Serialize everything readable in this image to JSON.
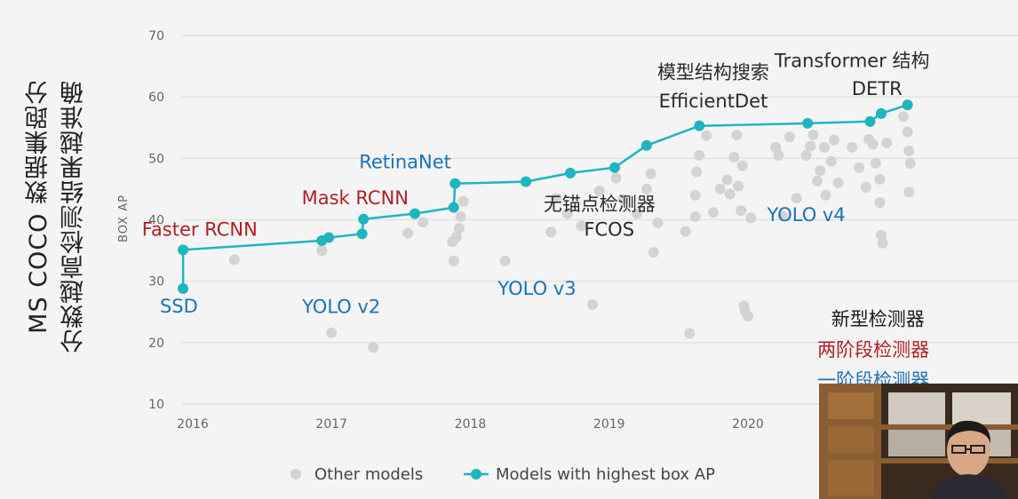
{
  "side_title": {
    "line1": "MS COCO 数据集跑分",
    "line2": "分数越高检测结果越准确"
  },
  "chart_data": {
    "type": "scatter",
    "xlabel": "",
    "ylabel": "BOX AP",
    "xlim": [
      2015.9,
      2021.2
    ],
    "ylim": [
      10,
      70
    ],
    "x_ticks": [
      "2016",
      "2017",
      "2018",
      "2019",
      "2020"
    ],
    "y_ticks": [
      "10",
      "20",
      "30",
      "40",
      "50",
      "60",
      "70"
    ],
    "grid": true,
    "legend_position": "bottom",
    "legend": [
      {
        "label": "Other models",
        "color": "#d3d3d3",
        "marker": "dot"
      },
      {
        "label": "Models with highest box AP",
        "color": "#1fb5bf",
        "marker": "line-dot"
      }
    ],
    "series": [
      {
        "name": "Models with highest box AP",
        "color": "#1fb5bf",
        "points": [
          [
            2015.93,
            28.8
          ],
          [
            2015.93,
            35.1
          ],
          [
            2016.93,
            36.6
          ],
          [
            2016.98,
            37.1
          ],
          [
            2017.22,
            37.7
          ],
          [
            2017.23,
            40.1
          ],
          [
            2017.6,
            41.0
          ],
          [
            2017.88,
            42.0
          ],
          [
            2017.89,
            45.9
          ],
          [
            2018.4,
            46.2
          ],
          [
            2018.72,
            47.6
          ],
          [
            2019.04,
            48.5
          ],
          [
            2019.27,
            52.1
          ],
          [
            2019.65,
            55.3
          ],
          [
            2020.43,
            55.7
          ],
          [
            2020.88,
            56.0
          ],
          [
            2020.96,
            57.3
          ],
          [
            2021.15,
            58.7
          ]
        ]
      },
      {
        "name": "Other models",
        "color": "#d3d3d3",
        "points": [
          [
            2016.3,
            33.5
          ],
          [
            2016.93,
            35.0
          ],
          [
            2017.0,
            21.6
          ],
          [
            2017.3,
            19.2
          ],
          [
            2017.55,
            37.8
          ],
          [
            2017.66,
            39.6
          ],
          [
            2017.88,
            33.3
          ],
          [
            2017.87,
            36.4
          ],
          [
            2017.9,
            37.2
          ],
          [
            2017.92,
            38.6
          ],
          [
            2017.93,
            40.5
          ],
          [
            2017.95,
            43.0
          ],
          [
            2018.25,
            33.3
          ],
          [
            2018.58,
            38.0
          ],
          [
            2018.62,
            43.5
          ],
          [
            2018.7,
            41.0
          ],
          [
            2018.8,
            39.0
          ],
          [
            2018.88,
            26.2
          ],
          [
            2018.93,
            44.7
          ],
          [
            2019.05,
            46.8
          ],
          [
            2019.1,
            43.3
          ],
          [
            2019.2,
            41.0
          ],
          [
            2019.27,
            45.0
          ],
          [
            2019.3,
            47.5
          ],
          [
            2019.32,
            34.7
          ],
          [
            2019.35,
            39.5
          ],
          [
            2019.55,
            38.1
          ],
          [
            2019.58,
            21.5
          ],
          [
            2019.62,
            40.5
          ],
          [
            2019.62,
            44.0
          ],
          [
            2019.63,
            47.8
          ],
          [
            2019.65,
            50.5
          ],
          [
            2019.7,
            53.7
          ],
          [
            2019.75,
            41.2
          ],
          [
            2019.8,
            45.0
          ],
          [
            2019.85,
            46.5
          ],
          [
            2019.87,
            44.2
          ],
          [
            2019.9,
            50.2
          ],
          [
            2019.92,
            53.8
          ],
          [
            2019.93,
            45.5
          ],
          [
            2019.95,
            41.5
          ],
          [
            2019.96,
            48.8
          ],
          [
            2019.97,
            26.0
          ],
          [
            2019.98,
            25.1
          ],
          [
            2020.0,
            24.3
          ],
          [
            2020.02,
            40.3
          ],
          [
            2020.2,
            51.8
          ],
          [
            2020.22,
            50.5
          ],
          [
            2020.25,
            40.6
          ],
          [
            2020.3,
            53.5
          ],
          [
            2020.35,
            43.5
          ],
          [
            2020.42,
            50.5
          ],
          [
            2020.45,
            52.0
          ],
          [
            2020.47,
            53.8
          ],
          [
            2020.5,
            46.3
          ],
          [
            2020.52,
            48.0
          ],
          [
            2020.55,
            51.8
          ],
          [
            2020.56,
            44.0
          ],
          [
            2020.6,
            49.5
          ],
          [
            2020.62,
            53.0
          ],
          [
            2020.65,
            46.0
          ],
          [
            2020.75,
            51.8
          ],
          [
            2020.8,
            48.5
          ],
          [
            2020.85,
            45.3
          ],
          [
            2020.87,
            53.1
          ],
          [
            2020.9,
            52.3
          ],
          [
            2020.92,
            49.2
          ],
          [
            2020.95,
            46.6
          ],
          [
            2020.95,
            42.8
          ],
          [
            2020.96,
            37.5
          ],
          [
            2020.97,
            36.2
          ],
          [
            2021.0,
            52.5
          ],
          [
            2021.12,
            56.8
          ],
          [
            2021.15,
            54.3
          ],
          [
            2021.16,
            51.2
          ],
          [
            2021.17,
            49.2
          ],
          [
            2021.16,
            44.5
          ]
        ]
      }
    ],
    "annotations": [
      {
        "text": "SSD",
        "color": "#1a72b8",
        "x": 2015.9,
        "y": 24.9,
        "anchor": "middle",
        "size": 21
      },
      {
        "text": "Faster RCNN",
        "color": "#b02024",
        "x": 2016.05,
        "y": 37.4,
        "anchor": "middle",
        "size": 21
      },
      {
        "text": "Mask RCNN",
        "color": "#b02024",
        "x": 2017.17,
        "y": 42.5,
        "anchor": "middle",
        "size": 21
      },
      {
        "text": "RetinaNet",
        "color": "#1a72b8",
        "x": 2017.53,
        "y": 48.4,
        "anchor": "middle",
        "size": 21
      },
      {
        "text": "YOLO v2",
        "color": "#1a72b8",
        "x": 2017.07,
        "y": 24.8,
        "anchor": "middle",
        "size": 21
      },
      {
        "text": "YOLO v3",
        "color": "#1a72b8",
        "x": 2018.48,
        "y": 27.8,
        "anchor": "middle",
        "size": 21
      },
      {
        "text": "YOLO v4",
        "color": "#1a72b8",
        "x": 2020.42,
        "y": 39.8,
        "anchor": "middle",
        "size": 21
      },
      {
        "text": "无锚点检测器",
        "color": "#2a2a2a",
        "x": 2018.93,
        "y": 41.5,
        "anchor": "middle",
        "size": 21
      },
      {
        "text": "FCOS",
        "color": "#2a2a2a",
        "x": 2019.0,
        "y": 37.4,
        "anchor": "middle",
        "size": 21
      },
      {
        "text": "模型结构搜索",
        "color": "#2a2a2a",
        "x": 2019.75,
        "y": 63.0,
        "anchor": "middle",
        "size": 21
      },
      {
        "text": "EfficientDet",
        "color": "#2a2a2a",
        "x": 2019.75,
        "y": 58.3,
        "anchor": "middle",
        "size": 21
      },
      {
        "text": "Transformer 结构",
        "color": "#2a2a2a",
        "x": 2020.75,
        "y": 64.9,
        "anchor": "middle",
        "size": 21
      },
      {
        "text": "DETR",
        "color": "#2a2a2a",
        "x": 2020.93,
        "y": 60.3,
        "anchor": "middle",
        "size": 21
      },
      {
        "text": "新型检测器",
        "color": "#1a1a1a",
        "x": 2020.6,
        "y": 22.8,
        "anchor": "start",
        "size": 21
      },
      {
        "text": "两阶段检测器",
        "color": "#b02024",
        "x": 2020.5,
        "y": 17.8,
        "anchor": "start",
        "size": 21
      },
      {
        "text": "一阶段检测器",
        "color": "#1a72b8",
        "x": 2020.5,
        "y": 12.8,
        "anchor": "start",
        "size": 21
      }
    ]
  }
}
